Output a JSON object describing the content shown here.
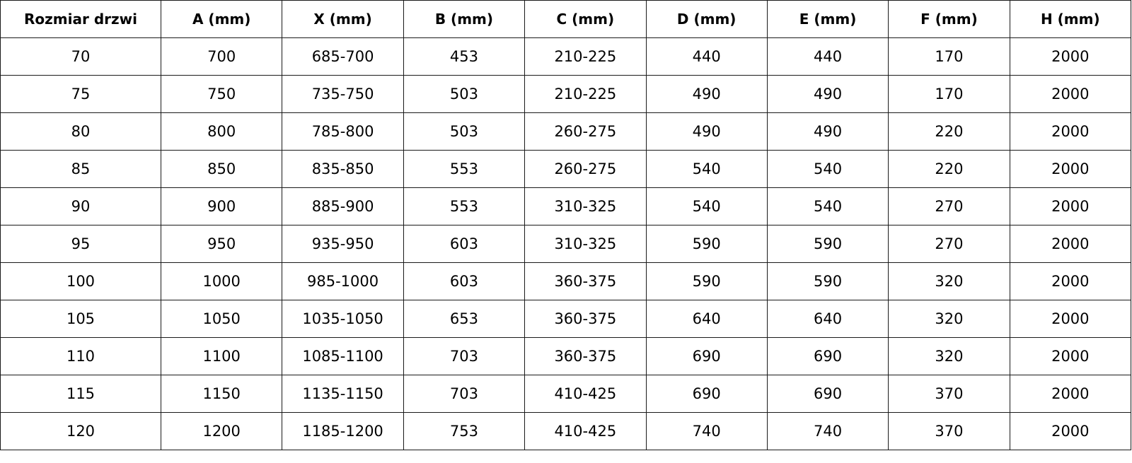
{
  "table": {
    "headers": [
      "Rozmiar drzwi",
      "A (mm)",
      "X (mm)",
      "B (mm)",
      "C (mm)",
      "D (mm)",
      "E (mm)",
      "F (mm)",
      "H (mm)"
    ],
    "rows": [
      [
        "70",
        "700",
        "685-700",
        "453",
        "210-225",
        "440",
        "440",
        "170",
        "2000"
      ],
      [
        "75",
        "750",
        "735-750",
        "503",
        "210-225",
        "490",
        "490",
        "170",
        "2000"
      ],
      [
        "80",
        "800",
        "785-800",
        "503",
        "260-275",
        "490",
        "490",
        "220",
        "2000"
      ],
      [
        "85",
        "850",
        "835-850",
        "553",
        "260-275",
        "540",
        "540",
        "220",
        "2000"
      ],
      [
        "90",
        "900",
        "885-900",
        "553",
        "310-325",
        "540",
        "540",
        "270",
        "2000"
      ],
      [
        "95",
        "950",
        "935-950",
        "603",
        "310-325",
        "590",
        "590",
        "270",
        "2000"
      ],
      [
        "100",
        "1000",
        "985-1000",
        "603",
        "360-375",
        "590",
        "590",
        "320",
        "2000"
      ],
      [
        "105",
        "1050",
        "1035-1050",
        "653",
        "360-375",
        "640",
        "640",
        "320",
        "2000"
      ],
      [
        "110",
        "1100",
        "1085-1100",
        "703",
        "360-375",
        "690",
        "690",
        "320",
        "2000"
      ],
      [
        "115",
        "1150",
        "1135-1150",
        "703",
        "410-425",
        "690",
        "690",
        "370",
        "2000"
      ],
      [
        "120",
        "1200",
        "1185-1200",
        "753",
        "410-425",
        "740",
        "740",
        "370",
        "2000"
      ]
    ]
  }
}
